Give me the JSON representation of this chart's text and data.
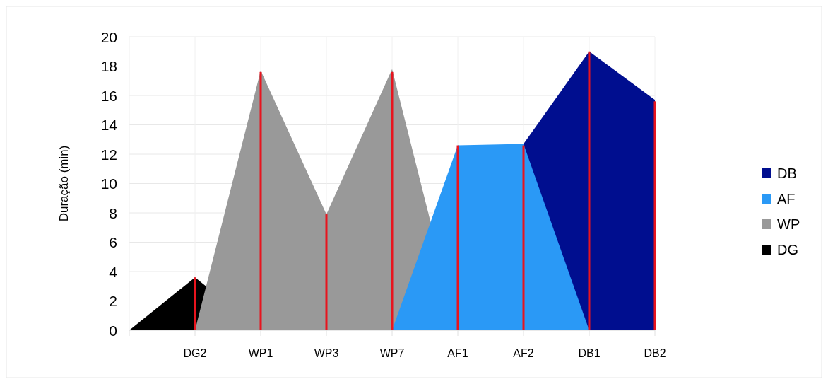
{
  "chart_data": {
    "type": "area",
    "ylabel": "Duração (min)",
    "categories": [
      null,
      "DG2",
      "WP1",
      "WP3",
      "WP7",
      "AF1",
      "AF2",
      "DB1",
      "DB2"
    ],
    "series": [
      {
        "name": "DB",
        "color": "#000e8f",
        "values": [
          null,
          null,
          null,
          null,
          null,
          null,
          12.7,
          19,
          15.7
        ]
      },
      {
        "name": "AF",
        "color": "#2a99f6",
        "values": [
          null,
          null,
          null,
          null,
          0,
          12.6,
          12.7,
          0,
          null
        ]
      },
      {
        "name": "WP",
        "color": "#999999",
        "values": [
          null,
          0,
          17.7,
          7.9,
          17.8,
          0,
          null,
          null,
          null
        ]
      },
      {
        "name": "DG",
        "color": "#000000",
        "values": [
          0,
          3.6,
          0,
          null,
          null,
          null,
          null,
          null,
          null
        ]
      },
      {
        "type": "bar",
        "color": "#e8141e",
        "values": [
          null,
          3.6,
          17.6,
          7.9,
          17.6,
          12.6,
          12.6,
          19,
          15.6
        ]
      }
    ],
    "ylim": [
      0,
      20
    ],
    "yticks": [
      0,
      2,
      4,
      6,
      8,
      10,
      12,
      14,
      16,
      18,
      20
    ],
    "grid": true,
    "legend": "right"
  }
}
